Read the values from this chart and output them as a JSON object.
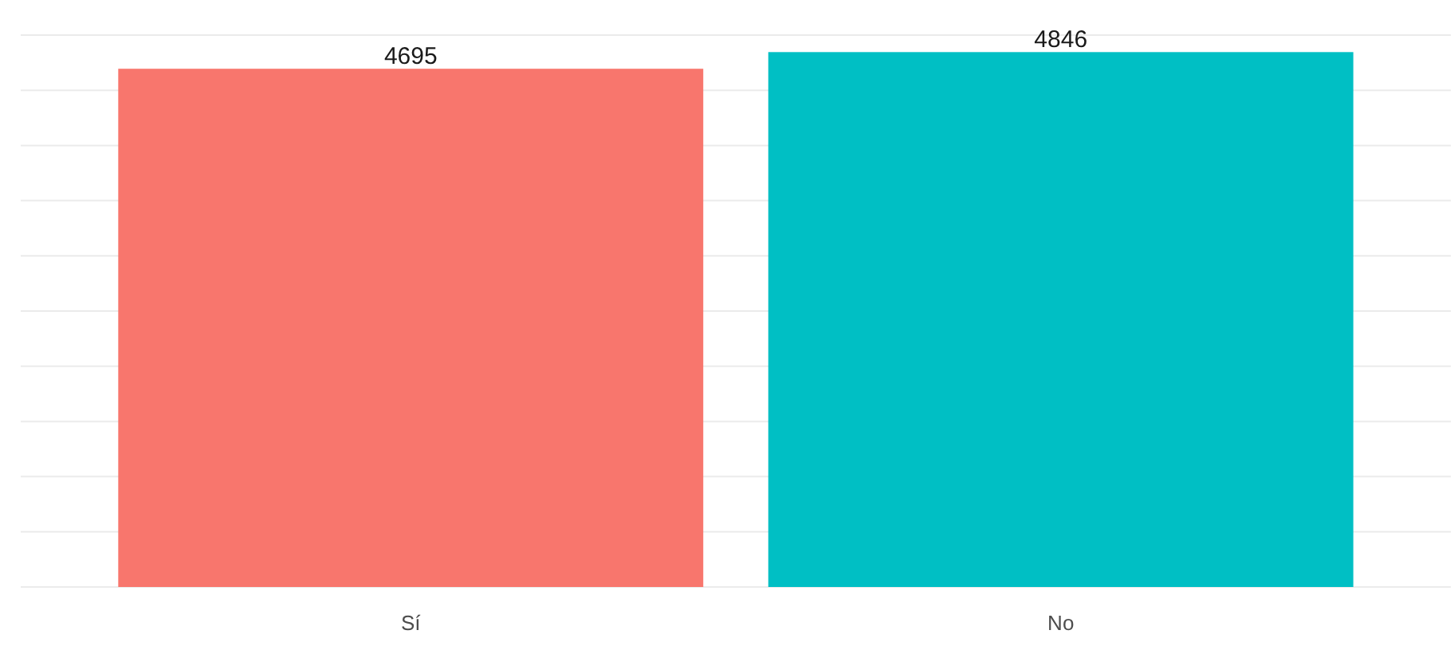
{
  "chart_data": {
    "type": "bar",
    "categories": [
      "Sí",
      "No"
    ],
    "values": [
      4695,
      4846
    ],
    "colors": [
      "#f8766d",
      "#00bfc4"
    ],
    "ylim": [
      0,
      5000
    ],
    "yticks": [
      {
        "value": 0,
        "label": null
      },
      {
        "value": 500,
        "label": null
      },
      {
        "value": 1000,
        "label": null
      },
      {
        "value": 1500,
        "label": null
      },
      {
        "value": 2000,
        "label": null
      },
      {
        "value": 2500,
        "label": null
      },
      {
        "value": 3000,
        "label": null
      },
      {
        "value": 3500,
        "label": null
      },
      {
        "value": 4000,
        "label": null
      },
      {
        "value": 4500,
        "label": null
      },
      {
        "value": 5000,
        "label": null
      }
    ],
    "grid": "y",
    "tick_labels": "x",
    "data_labels": true
  }
}
